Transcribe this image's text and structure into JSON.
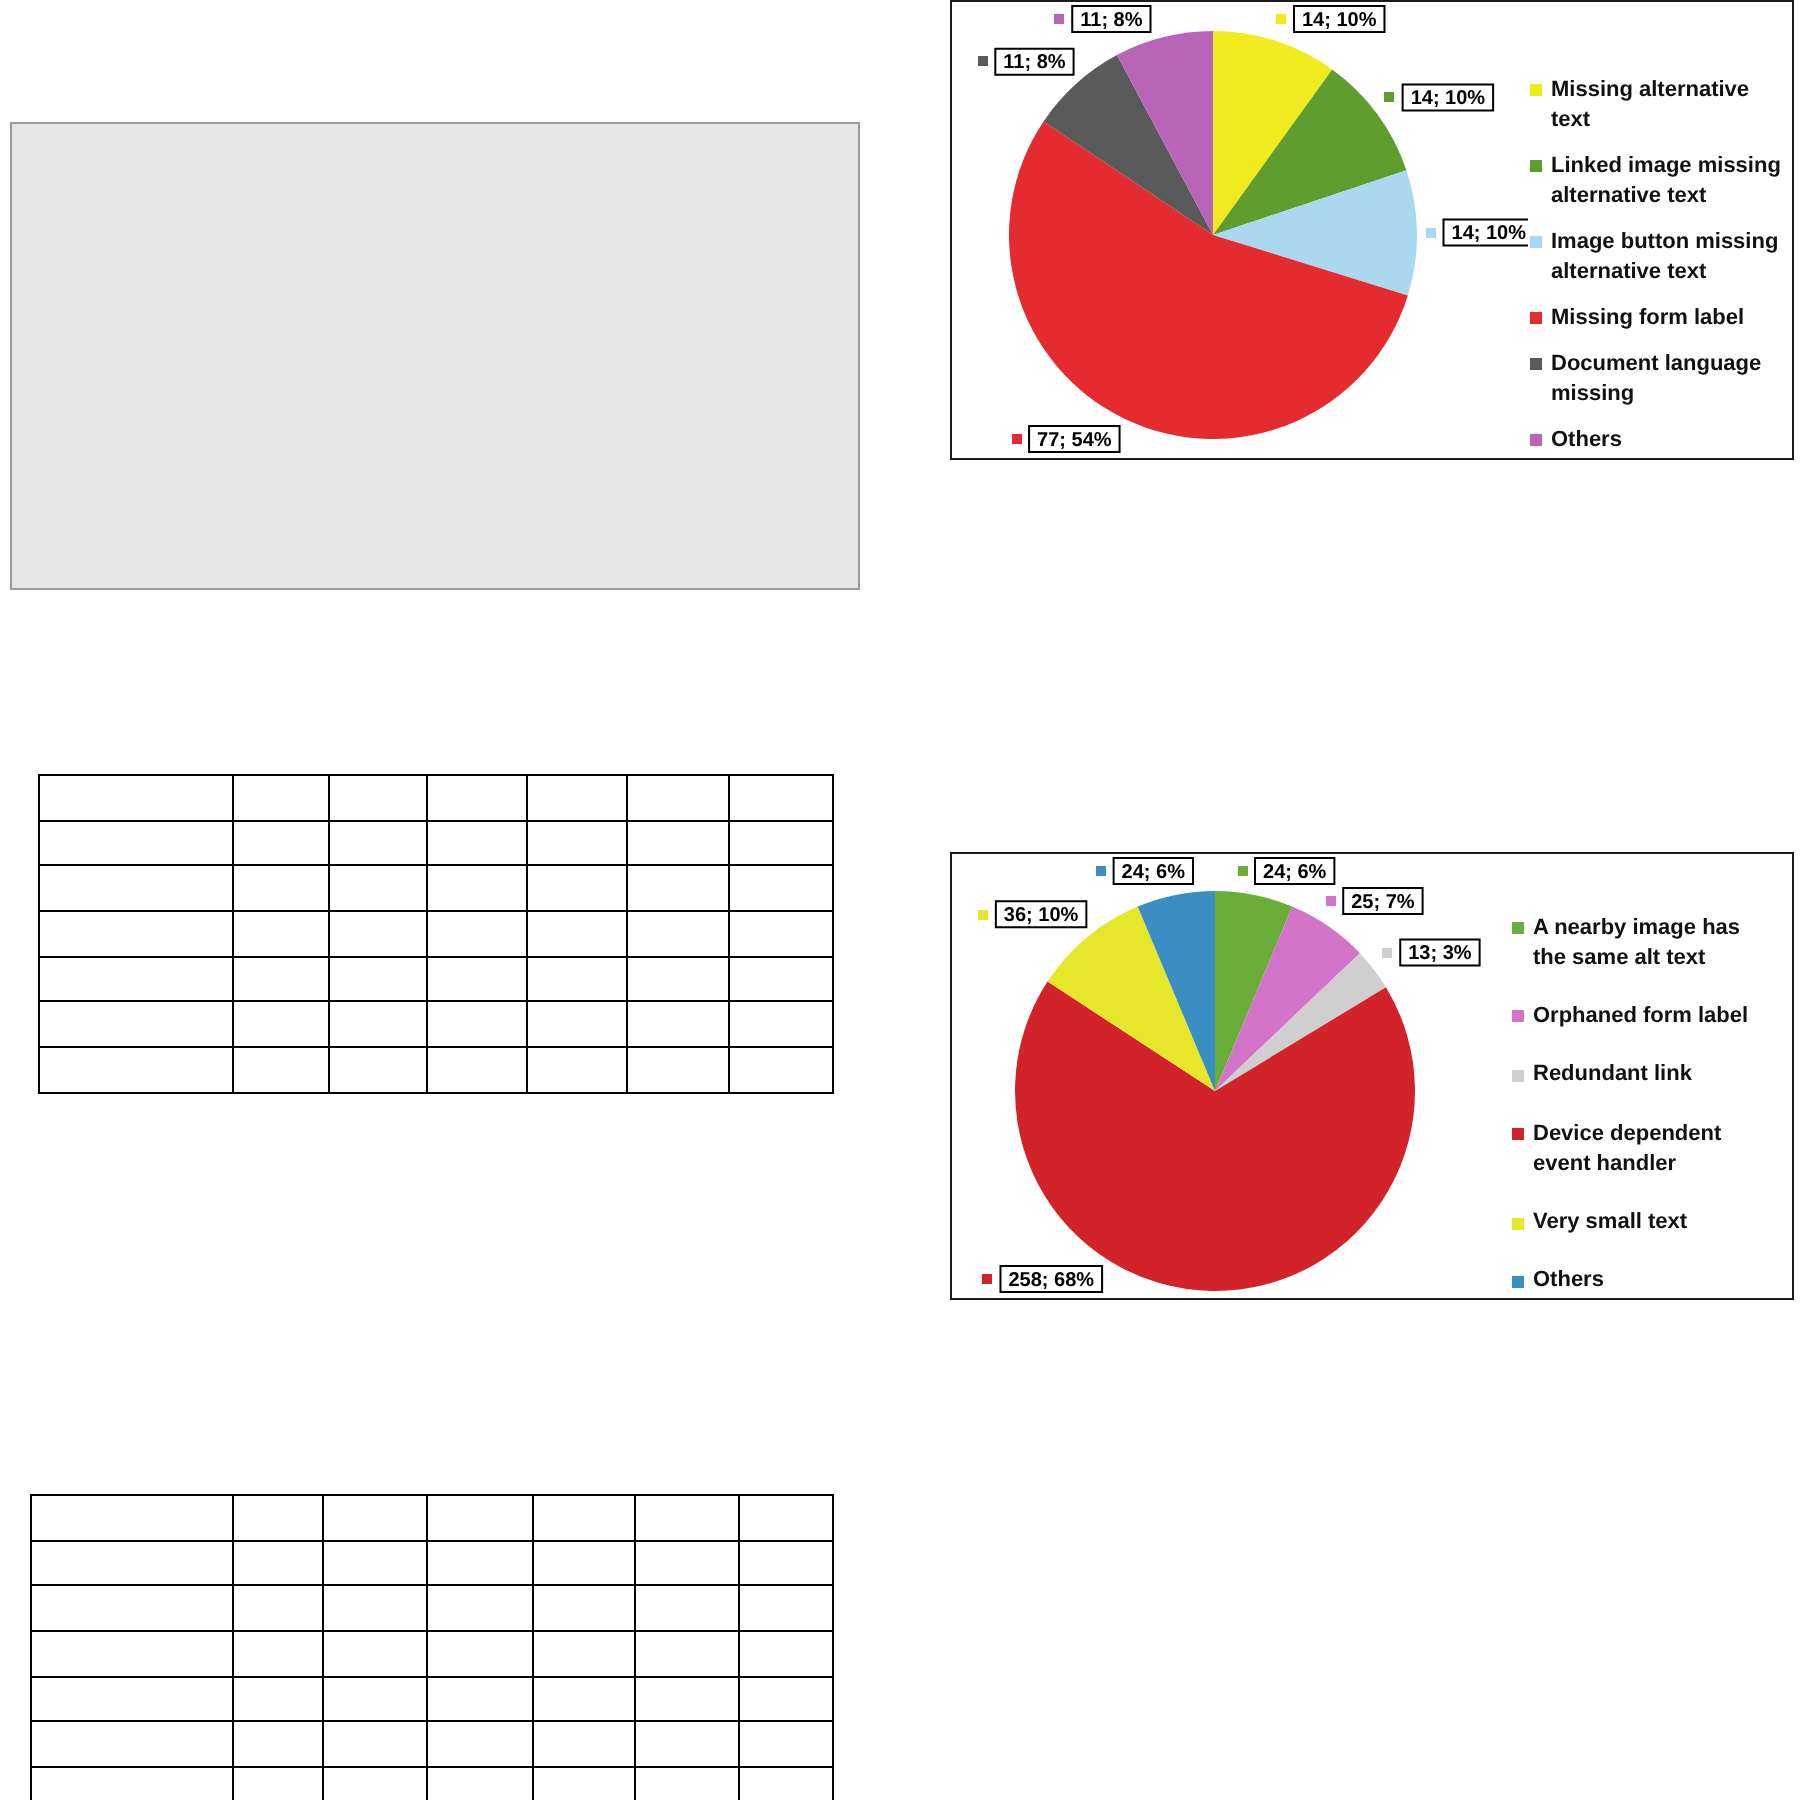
{
  "chart_data": [
    {
      "type": "pie",
      "categories": [
        "Missing alternative text",
        "Linked image missing alternative text",
        "Image button missing alternative text",
        "Missing form label",
        "Document language missing",
        "Others"
      ],
      "values": [
        14,
        14,
        14,
        77,
        11,
        11
      ],
      "colors": [
        "#f0ea1e",
        "#5f9e2e",
        "#a9d8ef",
        "#e42b2f",
        "#5a5a5a",
        "#b865b8"
      ],
      "value_labels": [
        "14; 10%",
        "14; 10%",
        "14; 10%",
        "77; 54%",
        "11; 8%",
        "11; 8%"
      ],
      "legend": "right"
    },
    {
      "type": "pie",
      "categories": [
        "A nearby image has the same alt text",
        "Orphaned form label",
        "Redundant link",
        "Device dependent event handler",
        "Very small text",
        "Others"
      ],
      "values": [
        24,
        25,
        13,
        258,
        36,
        24
      ],
      "colors": [
        "#6aae3a",
        "#d374c8",
        "#cfcfcf",
        "#d3232a",
        "#e6e62a",
        "#3a8ec4"
      ],
      "value_labels": [
        "24; 6%",
        "25; 7%",
        "13; 3%",
        "258; 68%",
        "36; 10%",
        "24; 6%"
      ],
      "legend": "right"
    }
  ]
}
